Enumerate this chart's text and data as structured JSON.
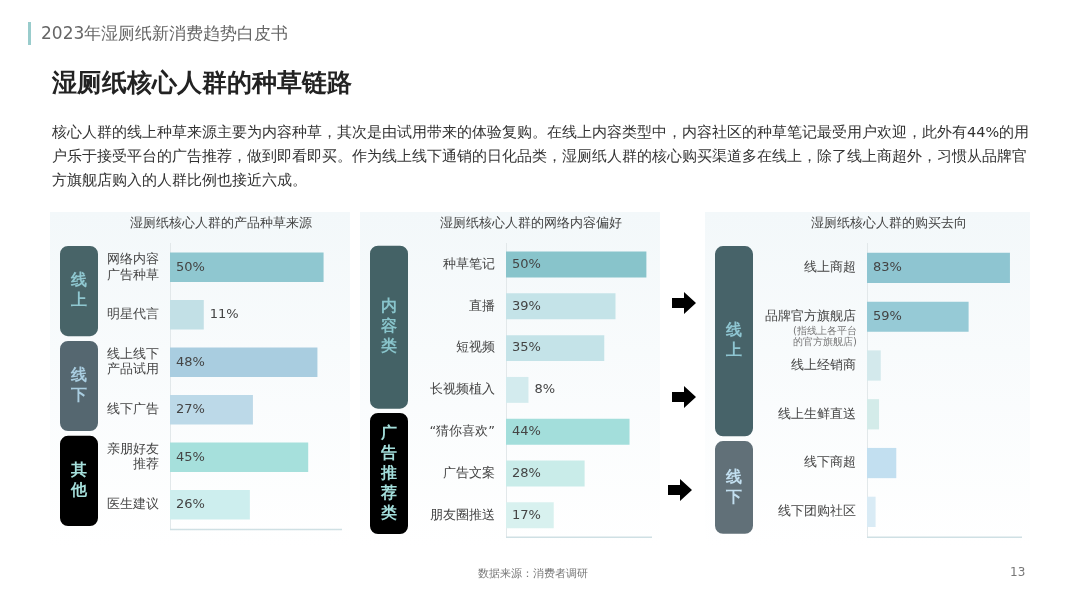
{
  "chart_data": [
    {
      "type": "other",
      "title": "湿厕纸核心人群的种草链路",
      "subtitle": "核心人群的线上种草来源主要为内容种草，其次是由试用带来的体验复购。在线上内容类型中，内容社区的种草笔记最受用户欢迎，此外有44%的用户乐于接受平台的广告推荐，做到即看即买。作为线上线下通销的日化品类，湿厕纸人群的核心购买渠道多在线上，除了线上商超外，习惯从品牌官方旗舰店购入的人群比例也接近六成。",
      "annotations": [
        "2023年湿厕纸新消费趋势白皮书",
        "数据来源：消费者调研",
        "13"
      ]
    },
    {
      "type": "bar",
      "orientation": "horizontal",
      "title": "湿厕纸核心人群的产品种草来源",
      "categories": [
        "网络内容广告种草",
        "明星代言",
        "线上线下产品试用",
        "线下广告",
        "亲朋好友推荐",
        "医生建议"
      ],
      "xlim": [
        0,
        56
      ],
      "tick_labels": "y",
      "grid": false,
      "series": [
        {
          "name": "线上",
          "color": "#8fc7d0",
          "values": [
            50,
            11,
            null,
            null,
            null,
            null
          ],
          "value_labels": [
            "50%",
            "11%",
            null,
            null,
            null,
            null
          ],
          "colors": [
            "#8fc7d0",
            "#c2e0e6",
            null,
            null,
            null,
            null
          ]
        },
        {
          "name": "线下",
          "color": "#a9cde0",
          "values": [
            null,
            null,
            48,
            27,
            null,
            null
          ],
          "value_labels": [
            null,
            null,
            "48%",
            "27%",
            null,
            null
          ],
          "colors": [
            null,
            null,
            "#a9cde0",
            "#bcd9e8",
            null,
            null
          ]
        },
        {
          "name": "其他",
          "color": "#a6e0dc",
          "values": [
            null,
            null,
            null,
            null,
            45,
            26
          ],
          "value_labels": [
            null,
            null,
            null,
            null,
            "45%",
            "26%"
          ],
          "colors": [
            null,
            null,
            null,
            null,
            "#a6e0dc",
            "#cdeeee"
          ]
        }
      ]
    },
    {
      "type": "bar",
      "orientation": "horizontal",
      "title": "湿厕纸核心人群的网络内容偏好",
      "categories": [
        "种草笔记",
        "直播",
        "短视频",
        "长视频植入",
        "“猜你喜欢”",
        "广告文案",
        "朋友圈推送"
      ],
      "xlim": [
        0,
        52
      ],
      "tick_labels": "y",
      "grid": false,
      "series": [
        {
          "name": "内容类",
          "color": "#88c4cb",
          "values": [
            50,
            39,
            35,
            8,
            null,
            null,
            null
          ],
          "value_labels": [
            "50%",
            "39%",
            "35%",
            "8%",
            null,
            null,
            null
          ],
          "colors": [
            "#88c4cb",
            "#c4e3e8",
            "#c4e3e8",
            "#d3ebee",
            null,
            null,
            null
          ]
        },
        {
          "name": "广告推荐类",
          "color": "#a3dedb",
          "values": [
            null,
            null,
            null,
            null,
            44,
            28,
            17
          ],
          "value_labels": [
            null,
            null,
            null,
            null,
            "44%",
            "28%",
            "17%"
          ],
          "colors": [
            null,
            null,
            null,
            null,
            "#a3dedb",
            "#c9ece9",
            "#d8f1ef"
          ]
        }
      ]
    },
    {
      "type": "bar",
      "orientation": "horizontal",
      "title": "湿厕纸核心人群的购买去向",
      "categories": [
        "线上商超",
        "品牌官方旗舰店",
        "线上经销商",
        "线上生鲜直送",
        "线下商超",
        "线下团购社区"
      ],
      "xlim": [
        0,
        90
      ],
      "tick_labels": "y",
      "grid": false,
      "series": [
        {
          "name": "线上",
          "color": "#8ec5d1",
          "values": [
            83,
            59,
            8,
            7,
            null,
            null
          ],
          "value_labels": [
            "83%",
            "59%",
            null,
            null,
            null,
            null
          ],
          "colors": [
            "#8ec5d1",
            "#96cad6",
            "#d3e9ec",
            "#d3ebe9",
            null,
            null
          ]
        },
        {
          "name": "线下",
          "color": "#c2dff0",
          "values": [
            null,
            null,
            null,
            null,
            17,
            5
          ],
          "colors": [
            null,
            null,
            null,
            null,
            "#c2dff0",
            "#d9ebf5"
          ]
        }
      ],
      "annotations": [
        "(指线上各平台的官方旗舰店)"
      ]
    }
  ]
}
